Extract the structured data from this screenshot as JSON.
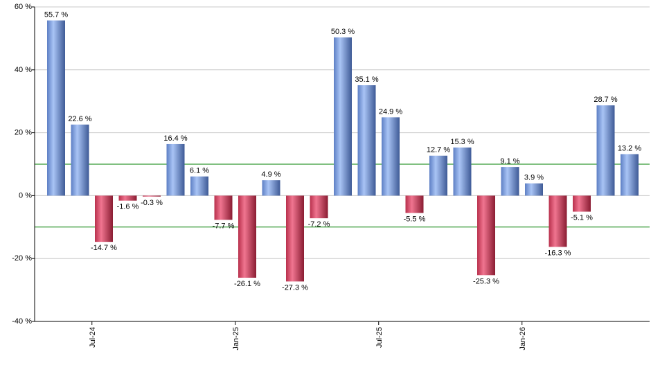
{
  "chart_data": {
    "type": "bar",
    "title": "",
    "xlabel": "",
    "ylabel": "",
    "ylim": [
      -40,
      60
    ],
    "y_ticks": [
      60,
      40,
      20,
      0,
      -20,
      -40
    ],
    "y_tick_labels": [
      "60 %",
      "40 %",
      "20 %",
      "0 %",
      "-20 %",
      "-40 %"
    ],
    "x_tick_labels": [
      {
        "label": "Jul-24",
        "after_bar": 1
      },
      {
        "label": "Jan-25",
        "after_bar": 7
      },
      {
        "label": "Jul-25",
        "after_bar": 13
      },
      {
        "label": "Jan-26",
        "after_bar": 19
      }
    ],
    "reference_lines": [
      10,
      -10
    ],
    "reference_line_color": "#008000",
    "grid": true,
    "positive_color": "#7d9fe0",
    "negative_color": "#cc3355",
    "values": [
      55.7,
      22.6,
      -14.7,
      -1.6,
      -0.3,
      16.4,
      6.1,
      -7.7,
      -26.1,
      4.9,
      -27.3,
      -7.2,
      50.3,
      35.1,
      24.9,
      -5.5,
      12.7,
      15.3,
      -25.3,
      9.1,
      3.9,
      -16.3,
      -5.1,
      28.7,
      13.2
    ],
    "value_labels": [
      "55.7 %",
      "22.6 %",
      "-14.7 %",
      "-1.6 %",
      "-0.3 %",
      "16.4 %",
      "6.1 %",
      "-7.7 %",
      "-26.1 %",
      "4.9 %",
      "-27.3 %",
      "-7.2 %",
      "50.3 %",
      "35.1 %",
      "24.9 %",
      "-5.5 %",
      "12.7 %",
      "15.3 %",
      "-25.3 %",
      "9.1 %",
      "3.9 %",
      "-16.3 %",
      "-5.1 %",
      "28.7 %",
      "13.2 %"
    ]
  }
}
